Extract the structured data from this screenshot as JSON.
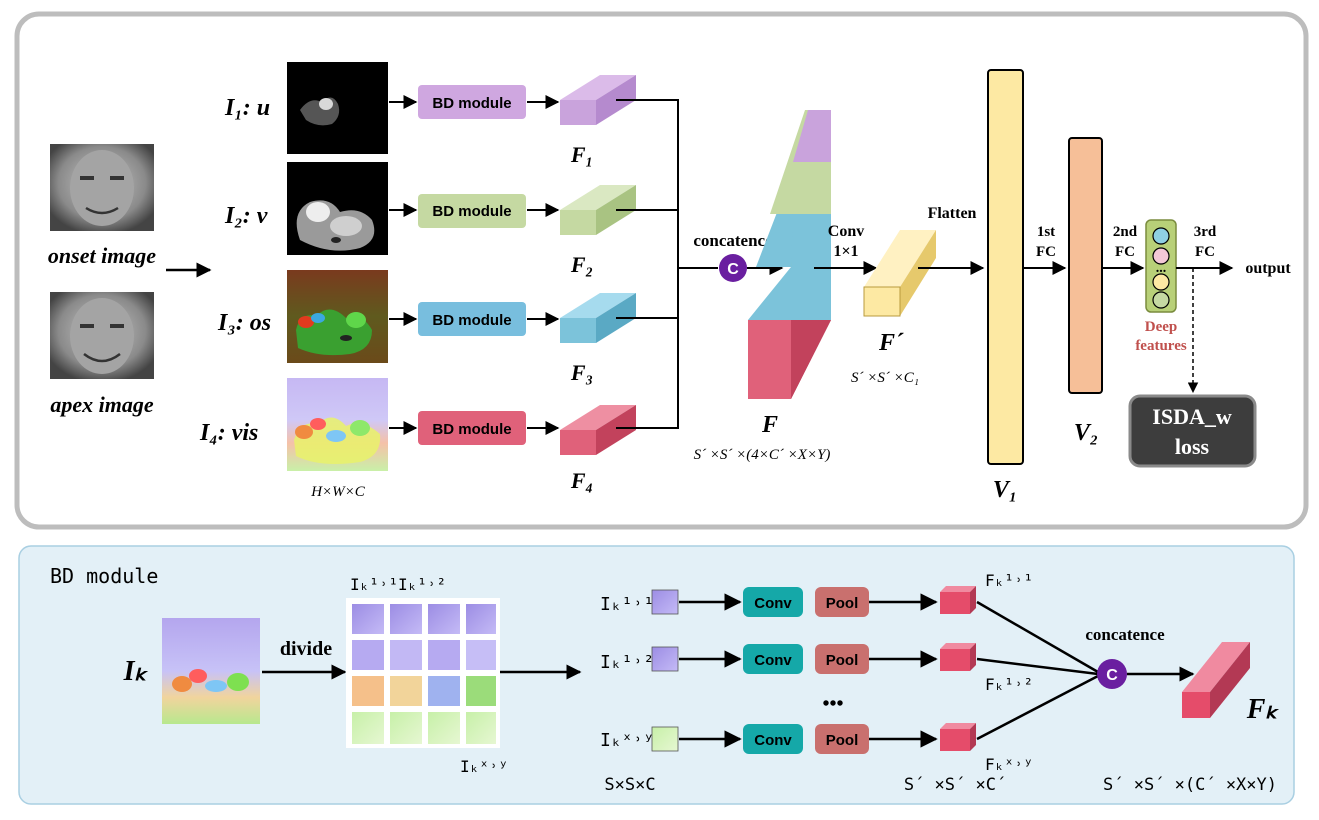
{
  "top": {
    "onset_label": "onset image",
    "apex_label": "apex image",
    "inputs": [
      {
        "label": "I₁: u"
      },
      {
        "label": "I₂: v"
      },
      {
        "label": "I₃: os"
      },
      {
        "label": "I₄: vis"
      }
    ],
    "hwc_label": "H×W×C",
    "bd_labels": [
      "BD module",
      "BD module",
      "BD module",
      "BD  module"
    ],
    "feature_labels": [
      "F₁",
      "F₂",
      "F₃",
      "F₄"
    ],
    "concat_label": "concatence",
    "concat_symbol": "C",
    "F_label": "F",
    "F_dims": "S´ ×S´ ×(4×C´ ×X×Y)",
    "conv_label_1": "Conv",
    "conv_label_2": "1×1",
    "Fprime_label": "F´",
    "Fprime_dims": "S´ ×S´ ×C₁",
    "flatten_label": "Flatten",
    "fc1_label_1": "1st",
    "fc1_label_2": "FC",
    "fc2_label_1": "2nd",
    "fc2_label_2": "FC",
    "fc3_label_1": "3rd",
    "fc3_label_2": "FC",
    "V1_label": "V₁",
    "V2_label": "V₂",
    "output_label": "output",
    "deep_features_1": "Deep",
    "deep_features_2": "features",
    "dots_label": "...",
    "loss_label_1": "ISDA_w",
    "loss_label_2": "loss",
    "colors": {
      "purple_block": "#c9a3dc",
      "green_block": "#c5d9a2",
      "blue_block": "#7cc3da",
      "red_block": "#e0617a",
      "yellow_block": "#fde9a3",
      "orange_block": "#f6bf98",
      "concat_circle": "#6a1fa0",
      "deep_features_text": "#c0504d",
      "loss_box": "#3d3d3d"
    }
  },
  "bottom": {
    "title": "BD module",
    "Ik_label": "Iₖ",
    "divide_label": "divide",
    "patch_label_11": "Iₖ¹˒¹",
    "patch_label_12": "Iₖ¹˒²",
    "patch_label_XY": "Iₖˣ˒ʸ",
    "rows": [
      {
        "in_label": "Iₖ¹˒¹",
        "out_label": "Fₖ¹˒¹"
      },
      {
        "in_label": "Iₖ¹˒²",
        "out_label": "Fₖ¹˒²"
      },
      {
        "in_label": "Iₖˣ˒ʸ",
        "out_label": "Fₖˣ˒ʸ"
      }
    ],
    "conv_label": "Conv",
    "pool_label": "Pool",
    "ellipsis": "•••",
    "concat_label": "concatence",
    "concat_symbol": "C",
    "Fk_label": "Fₖ",
    "dims_in": "S×S×C",
    "dims_mid": "S´ ×S´ ×C´",
    "dims_out": "S´ ×S´ ×(C´ ×X×Y)",
    "colors": {
      "panel_bg": "#e3f0f7",
      "conv": "#15a8a8",
      "pool": "#c9706e",
      "cube": "#e54c6a"
    }
  }
}
